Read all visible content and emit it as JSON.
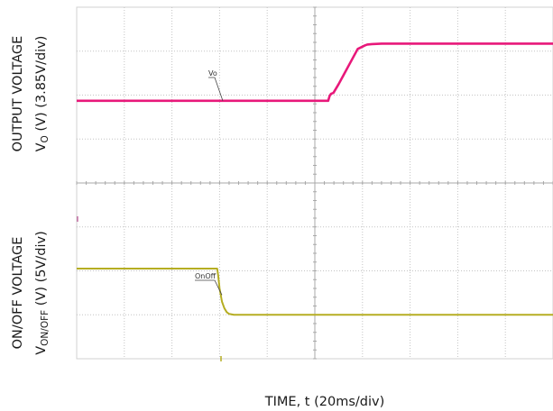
{
  "chart_data": {
    "type": "line",
    "xlabel": "TIME, t (20ms/div)",
    "x_divisions": 10,
    "panels": [
      {
        "name": "output",
        "ylabel_main": "OUTPUT VOLTAGE",
        "ylabel_sym": "V",
        "ylabel_sub": "O",
        "ylabel_rest": " (V) (3.85V/div)",
        "marker_label": "Vo",
        "color": "#e8187a",
        "y_divisions": 4,
        "series": {
          "name": "Vo",
          "x_div": [
            0,
            5.28,
            5.31,
            5.34,
            5.39,
            5.5,
            5.7,
            5.9,
            6.05,
            6.1,
            6.2,
            6.4,
            7.0,
            8.0,
            10.0
          ],
          "y_div": [
            1.87,
            1.87,
            1.98,
            2.03,
            2.05,
            2.25,
            2.65,
            3.05,
            3.13,
            3.15,
            3.16,
            3.17,
            3.17,
            3.17,
            3.17
          ]
        }
      },
      {
        "name": "onoff",
        "ylabel_main": "ON/OFF VOLTAGE",
        "ylabel_sym": "V",
        "ylabel_sub": "ON/OFF",
        "ylabel_rest": " (V) (5V/div)",
        "marker_label": "OnOff",
        "color": "#b5ad22",
        "y_divisions": 4,
        "series": {
          "name": "OnOff",
          "x_div": [
            0,
            2.95,
            2.97,
            3.0,
            3.05,
            3.1,
            3.15,
            3.2,
            3.3,
            10.0
          ],
          "y_div": [
            2.05,
            2.05,
            1.9,
            1.6,
            1.3,
            1.15,
            1.06,
            1.02,
            1.0,
            1.0
          ]
        }
      }
    ]
  }
}
